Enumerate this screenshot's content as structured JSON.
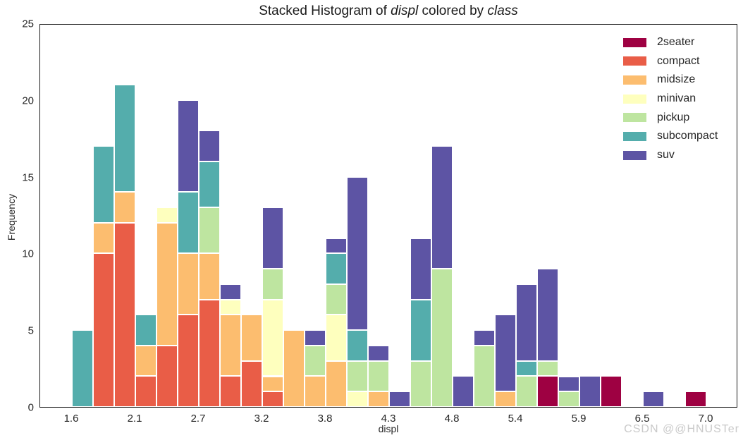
{
  "title": {
    "prefix": "Stacked Histogram of ",
    "italic_word_1": "displ",
    "middle": " colored by ",
    "italic_word_2": "class"
  },
  "watermark": "CSDN @@HNUSTer",
  "chart_data": {
    "type": "bar",
    "subtype": "stacked-histogram",
    "title": "Stacked Histogram of displ colored by class",
    "xlabel": "displ",
    "ylabel": "Frequency",
    "xlim": [
      1.33,
      7.27
    ],
    "ylim": [
      0,
      25
    ],
    "grid": false,
    "legend_position": "upper-right",
    "bin_start": 1.6,
    "bin_width": 0.18,
    "x_tick_values": [
      1.6,
      2.14,
      2.68,
      3.22,
      3.76,
      4.3,
      4.84,
      5.38,
      5.92,
      6.46,
      7.0
    ],
    "x_tick_labels": [
      "1.6",
      "2.1",
      "2.7",
      "3.2",
      "3.8",
      "4.3",
      "4.8",
      "5.4",
      "5.9",
      "6.5",
      "7.0"
    ],
    "y_tick_values": [
      0,
      5,
      10,
      15,
      20,
      25
    ],
    "y_tick_labels": [
      "0",
      "5",
      "10",
      "15",
      "20",
      "25"
    ],
    "classes": [
      {
        "name": "2seater",
        "color": "#9e0142"
      },
      {
        "name": "compact",
        "color": "#e95d47"
      },
      {
        "name": "midsize",
        "color": "#fcbd6f"
      },
      {
        "name": "minivan",
        "color": "#feffbe"
      },
      {
        "name": "pickup",
        "color": "#bee5a0"
      },
      {
        "name": "subcompact",
        "color": "#54adac"
      },
      {
        "name": "suv",
        "color": "#5d54a4"
      }
    ],
    "bins": [
      [
        0,
        0,
        0,
        0,
        0,
        5,
        0
      ],
      [
        0,
        10,
        2,
        0,
        0,
        5,
        0
      ],
      [
        0,
        12,
        2,
        0,
        0,
        7,
        0
      ],
      [
        0,
        2,
        2,
        0,
        0,
        2,
        0
      ],
      [
        0,
        4,
        8,
        1,
        0,
        0,
        0
      ],
      [
        0,
        6,
        4,
        0,
        0,
        4,
        6
      ],
      [
        0,
        7,
        3,
        0,
        3,
        3,
        2
      ],
      [
        0,
        2,
        4,
        1,
        0,
        0,
        1
      ],
      [
        0,
        3,
        3,
        0,
        0,
        0,
        0
      ],
      [
        0,
        1,
        1,
        5,
        2,
        0,
        4
      ],
      [
        0,
        0,
        5,
        0,
        0,
        0,
        0
      ],
      [
        0,
        0,
        2,
        0,
        2,
        0,
        1
      ],
      [
        0,
        0,
        3,
        3,
        2,
        2,
        1
      ],
      [
        0,
        0,
        0,
        1,
        2,
        2,
        10
      ],
      [
        0,
        0,
        1,
        0,
        2,
        0,
        1
      ],
      [
        0,
        0,
        0,
        0,
        0,
        0,
        1
      ],
      [
        0,
        0,
        0,
        0,
        3,
        4,
        4
      ],
      [
        0,
        0,
        0,
        0,
        9,
        0,
        8
      ],
      [
        0,
        0,
        0,
        0,
        0,
        0,
        2
      ],
      [
        0,
        0,
        0,
        0,
        4,
        0,
        1
      ],
      [
        0,
        0,
        1,
        0,
        0,
        0,
        5
      ],
      [
        0,
        0,
        0,
        0,
        2,
        1,
        5
      ],
      [
        2,
        0,
        0,
        0,
        1,
        0,
        6
      ],
      [
        0,
        0,
        0,
        0,
        1,
        0,
        1
      ],
      [
        0,
        0,
        0,
        0,
        0,
        0,
        2
      ],
      [
        2,
        0,
        0,
        0,
        0,
        0,
        0
      ],
      [
        0,
        0,
        0,
        0,
        0,
        0,
        0
      ],
      [
        0,
        0,
        0,
        0,
        0,
        0,
        1
      ],
      [
        0,
        0,
        0,
        0,
        0,
        0,
        0
      ],
      [
        1,
        0,
        0,
        0,
        0,
        0,
        0
      ]
    ]
  }
}
